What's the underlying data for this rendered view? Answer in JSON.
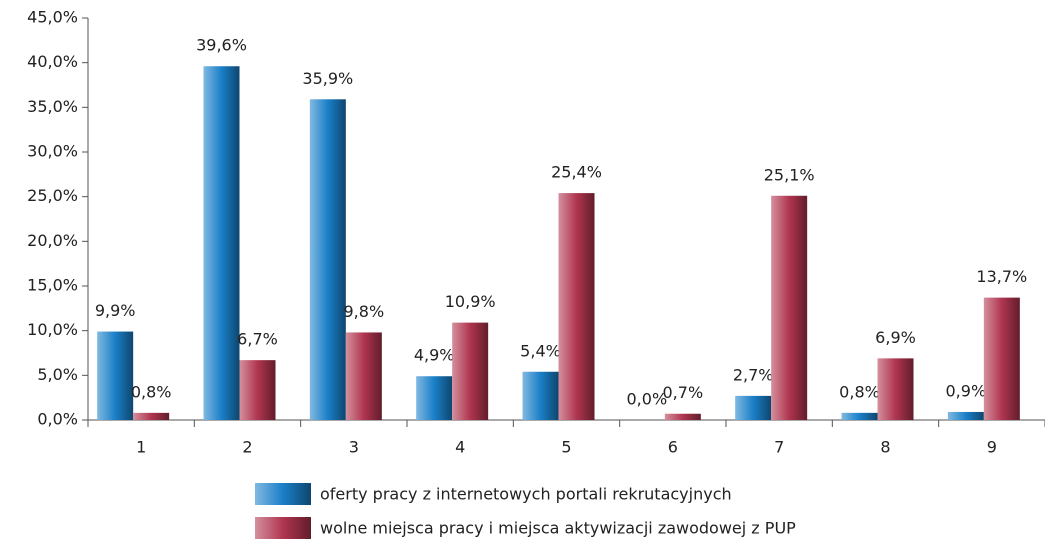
{
  "chart_data": {
    "type": "bar",
    "categories": [
      "1",
      "2",
      "3",
      "4",
      "5",
      "6",
      "7",
      "8",
      "9"
    ],
    "series": [
      {
        "name": "oferty pracy z internetowych portali rekrutacyjnych",
        "color": "#1a7fc8",
        "values": [
          9.9,
          39.6,
          35.9,
          4.9,
          5.4,
          0.0,
          2.7,
          0.8,
          0.9
        ],
        "value_labels": [
          "9,9%",
          "39,6%",
          "35,9%",
          "4,9%",
          "5,4%",
          "0,0%",
          "2,7%",
          "0,8%",
          "0,9%"
        ]
      },
      {
        "name": "wolne miejsca pracy i miejsca aktywizacji zawodowej z PUP",
        "color": "#b0354f",
        "values": [
          0.8,
          6.7,
          9.8,
          10.9,
          25.4,
          0.7,
          25.1,
          6.9,
          13.7
        ],
        "value_labels": [
          "0,8%",
          "6,7%",
          "9,8%",
          "10,9%",
          "25,4%",
          "0,7%",
          "25,1%",
          "6,9%",
          "13,7%"
        ]
      }
    ],
    "ylim": [
      0,
      45
    ],
    "yticks": [
      {
        "value": 0,
        "label": "0,0%"
      },
      {
        "value": 5,
        "label": "5,0%"
      },
      {
        "value": 10,
        "label": "10,0%"
      },
      {
        "value": 15,
        "label": "15,0%"
      },
      {
        "value": 20,
        "label": "20,0%"
      },
      {
        "value": 25,
        "label": "25,0%"
      },
      {
        "value": 30,
        "label": "30,0%"
      },
      {
        "value": 35,
        "label": "35,0%"
      },
      {
        "value": 40,
        "label": "40,0%"
      },
      {
        "value": 45,
        "label": "45,0%"
      }
    ],
    "grid": false,
    "legend": "bottom"
  }
}
